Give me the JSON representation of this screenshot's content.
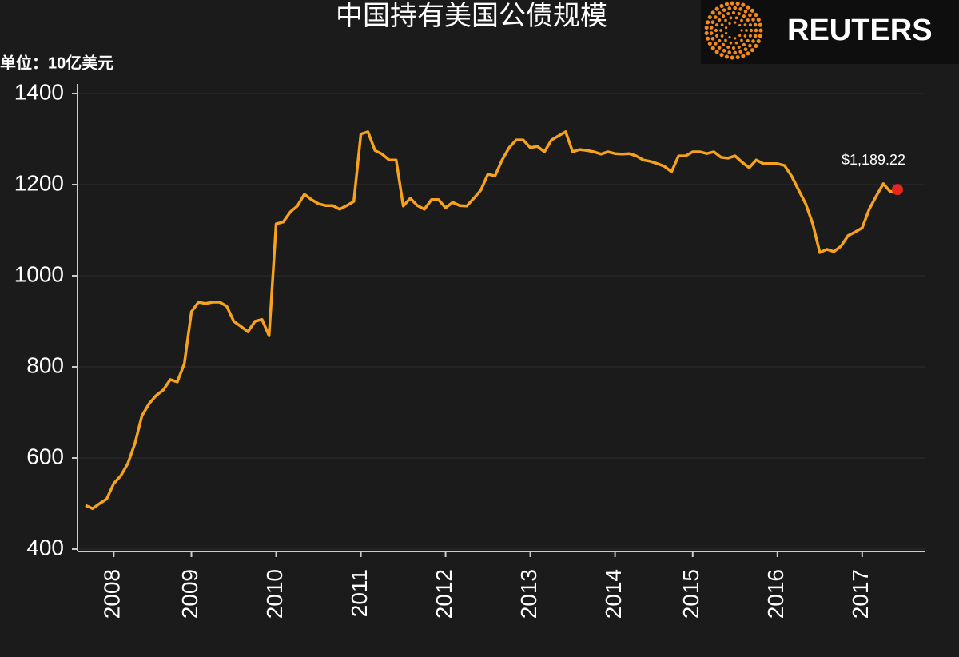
{
  "chart_data": {
    "type": "line",
    "title": "中国持有美国公债规模",
    "unit_label": "单位：10亿美元",
    "logo": "REUTERS",
    "categories": [
      null,
      null,
      null,
      null,
      "2008",
      null,
      null,
      null,
      null,
      null,
      null,
      null,
      null,
      null,
      null,
      "2009",
      null,
      null,
      null,
      null,
      null,
      null,
      null,
      null,
      null,
      null,
      null,
      "2010",
      null,
      null,
      null,
      null,
      null,
      null,
      null,
      null,
      null,
      null,
      null,
      "2011",
      null,
      null,
      null,
      null,
      null,
      null,
      null,
      null,
      null,
      null,
      null,
      "2012",
      null,
      null,
      null,
      null,
      null,
      null,
      null,
      null,
      null,
      null,
      null,
      "2013",
      null,
      null,
      null,
      null,
      null,
      null,
      null,
      null,
      null,
      null,
      null,
      "2014",
      null,
      null,
      null,
      null,
      null,
      null,
      null,
      null,
      null,
      null,
      "2015",
      null,
      null,
      null,
      null,
      null,
      null,
      null,
      null,
      null,
      null,
      null,
      "2016",
      null,
      null,
      null,
      null,
      null,
      null,
      null,
      null,
      null,
      null,
      null,
      "2017",
      null,
      null,
      null,
      null,
      null
    ],
    "values": [
      496,
      489,
      500,
      510,
      544,
      561,
      588,
      632,
      693,
      719,
      737,
      749,
      772,
      767,
      807,
      921,
      942,
      939,
      942,
      942,
      933,
      900,
      889,
      877,
      900,
      904,
      868,
      1114,
      1118,
      1140,
      1153,
      1179,
      1167,
      1158,
      1154,
      1154,
      1146,
      1154,
      1163,
      1311,
      1316,
      1275,
      1267,
      1254,
      1254,
      1153,
      1170,
      1154,
      1146,
      1167,
      1167,
      1149,
      1161,
      1154,
      1153,
      1170,
      1188,
      1223,
      1219,
      1254,
      1281,
      1298,
      1298,
      1281,
      1284,
      1272,
      1298,
      1307,
      1316,
      1272,
      1277,
      1275,
      1272,
      1267,
      1272,
      1268,
      1267,
      1268,
      1263,
      1254,
      1251,
      1246,
      1240,
      1228,
      1263,
      1263,
      1272,
      1272,
      1268,
      1272,
      1260,
      1258,
      1263,
      1249,
      1237,
      1254,
      1246,
      1246,
      1246,
      1242,
      1219,
      1188,
      1158,
      1114,
      1051,
      1058,
      1053,
      1065,
      1088,
      1096,
      1105,
      1146,
      1175,
      1202,
      1184,
      1189.22
    ],
    "value_labels": [
      null,
      null,
      null,
      null,
      null,
      null,
      null,
      null,
      null,
      null,
      null,
      null,
      null,
      null,
      null,
      null,
      null,
      null,
      null,
      null,
      null,
      null,
      null,
      null,
      null,
      null,
      null,
      null,
      null,
      null,
      null,
      null,
      null,
      null,
      null,
      null,
      null,
      null,
      null,
      null,
      null,
      null,
      null,
      null,
      null,
      null,
      null,
      null,
      null,
      null,
      null,
      null,
      null,
      null,
      null,
      null,
      null,
      null,
      null,
      null,
      null,
      null,
      null,
      null,
      null,
      null,
      null,
      null,
      null,
      null,
      null,
      null,
      null,
      null,
      null,
      null,
      null,
      null,
      null,
      null,
      null,
      null,
      null,
      null,
      null,
      null,
      null,
      null,
      null,
      null,
      null,
      null,
      null,
      null,
      null,
      null,
      null,
      null,
      null,
      null,
      null,
      null,
      null,
      null,
      null,
      null,
      null,
      null,
      null,
      null,
      null,
      null,
      null,
      null,
      null,
      "$1,189.22"
    ],
    "color": "#f7a21b",
    "last_point_color": "#e8251f",
    "ylim": [
      400,
      1400
    ],
    "yticks": [
      400,
      600,
      800,
      1000,
      1200,
      1400
    ],
    "grid": true
  }
}
